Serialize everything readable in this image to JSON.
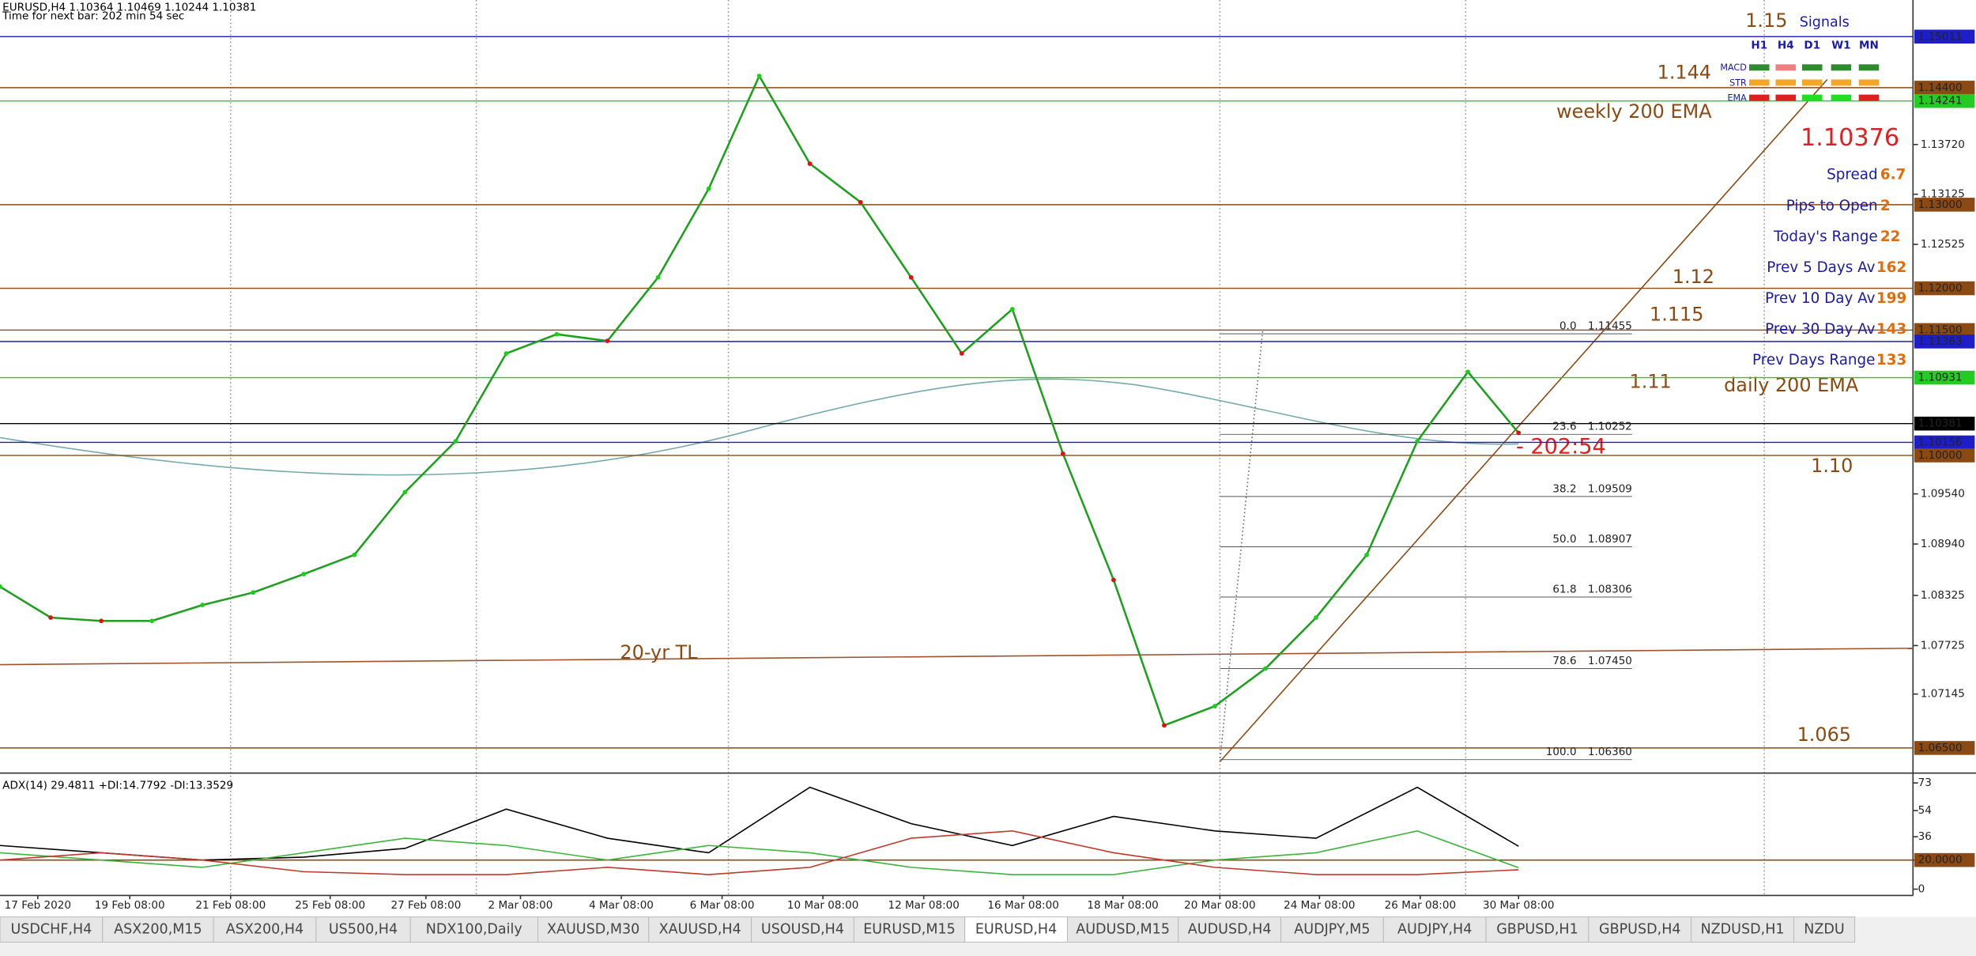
{
  "header": {
    "symbol_line": "EURUSD,H4  1.10364 1.10469 1.10244 1.10381",
    "timer": "Time for next bar: 202 min 54 sec"
  },
  "price_chart": {
    "ylim": [
      1.06214,
      1.15449
    ],
    "ticks": [
      {
        "value": 1.1372,
        "label": "1.13720"
      },
      {
        "value": 1.13125,
        "label": "1.13125"
      },
      {
        "value": 1.12525,
        "label": "1.12525"
      },
      {
        "value": 1.0954,
        "label": "1.09540"
      },
      {
        "value": 1.0894,
        "label": "1.08940"
      },
      {
        "value": 1.08325,
        "label": "1.08325"
      },
      {
        "value": 1.07725,
        "label": "1.07725"
      },
      {
        "value": 1.07145,
        "label": "1.07145"
      }
    ],
    "levels": [
      {
        "value": 1.15011,
        "label": "1.15011",
        "color": "#1e1ec8"
      },
      {
        "value": 1.144,
        "label": "1.14400",
        "color": "#8b4a13"
      },
      {
        "value": 1.14241,
        "label": "1.14241",
        "color": "#22cc22"
      },
      {
        "value": 1.13,
        "label": "1.13000",
        "color": "#8b4a13"
      },
      {
        "value": 1.12,
        "label": "1.12000",
        "color": "#8b4a13"
      },
      {
        "value": 1.115,
        "label": "1.11500",
        "color": "#8b4a13"
      },
      {
        "value": 1.11363,
        "label": "1.11363",
        "color": "#1e1ec8"
      },
      {
        "value": 1.10931,
        "label": "1.10931",
        "color": "#22cc22"
      },
      {
        "value": 1.10381,
        "label": "1.10381",
        "color": "#000000"
      },
      {
        "value": 1.10156,
        "label": "1.10156",
        "color": "#1e1ec8"
      },
      {
        "value": 1.1,
        "label": "1.10000",
        "color": "#8b4a13"
      },
      {
        "value": 1.065,
        "label": "1.06500",
        "color": "#8b4a13"
      }
    ],
    "fib": [
      {
        "level": "0.0",
        "value": 1.11455,
        "label": "1.11455"
      },
      {
        "level": "23.6",
        "value": 1.10252,
        "label": "1.10252"
      },
      {
        "level": "38.2",
        "value": 1.09509,
        "label": "1.09509"
      },
      {
        "level": "50.0",
        "value": 1.08907,
        "label": "1.08907"
      },
      {
        "level": "61.8",
        "value": 1.08306,
        "label": "1.08306"
      },
      {
        "level": "78.6",
        "value": 1.0745,
        "label": "1.07450"
      },
      {
        "level": "100.0",
        "value": 1.0636,
        "label": "1.06360"
      }
    ],
    "price": {
      "color": "#1ea01e",
      "values": [
        1.0843,
        1.0806,
        1.0802,
        1.0802,
        1.0821,
        1.0836,
        1.0858,
        1.0881,
        1.0956,
        1.1017,
        1.1122,
        1.1145,
        1.1137,
        1.1213,
        1.1319,
        1.1454,
        1.1349,
        1.1303,
        1.1213,
        1.1122,
        1.1175,
        1.1002,
        1.0851,
        1.0677,
        1.07,
        1.0745,
        1.0806,
        1.0881,
        1.1017,
        1.11,
        1.1027
      ]
    }
  },
  "annotations": {
    "a115": "1.15",
    "a1144": "1.144",
    "weekly": "weekly 200 EMA",
    "a112": "1.12",
    "a1115": "1.115",
    "a111": "1.11",
    "daily": "daily 200 EMA",
    "a110": "1.10",
    "a1065": "1.065",
    "tl": "20-yr TL",
    "countdown": "- 202:54"
  },
  "panel": {
    "title": "Signals",
    "timeframes": [
      "H1",
      "H4",
      "D1",
      "W1",
      "MN"
    ],
    "indicators": [
      "MACD",
      "STR",
      "EMA"
    ],
    "price": "1.10376",
    "rows": [
      {
        "label": "Spread",
        "value": "6.7"
      },
      {
        "label": "Pips to Open",
        "value": "2"
      },
      {
        "label": "Today's Range",
        "value": "22"
      },
      {
        "label": "Prev 5 Days Av",
        "value": "162"
      },
      {
        "label": "Prev 10 Day Av",
        "value": "199"
      },
      {
        "label": "Prev 30 Day Av",
        "value": "143"
      },
      {
        "label": "Prev Days Range",
        "value": "133"
      }
    ]
  },
  "adx": {
    "title": "ADX(14) 29.4811 +DI:14.7792 -DI:13.3529",
    "ylim": [
      0,
      78
    ],
    "ticks": [
      73,
      54,
      36,
      {
        "value": 20,
        "label": "20.0000"
      },
      0
    ],
    "series": [
      {
        "color": "#000000",
        "values": [
          30,
          25,
          20,
          22,
          28,
          55,
          35,
          25,
          70,
          45,
          30,
          50,
          40,
          35,
          70,
          29.4811
        ]
      },
      {
        "color": "#3cb43c",
        "values": [
          25,
          20,
          15,
          25,
          35,
          30,
          20,
          30,
          25,
          15,
          10,
          10,
          20,
          25,
          40,
          14.7792
        ]
      },
      {
        "color": "#c0392b",
        "values": [
          20,
          25,
          20,
          12,
          10,
          10,
          15,
          10,
          15,
          35,
          40,
          25,
          15,
          10,
          10,
          13.3529
        ]
      }
    ]
  },
  "time_axis": [
    "17 Feb 2020",
    "19 Feb 08:00",
    "21 Feb 08:00",
    "25 Feb 08:00",
    "27 Feb 08:00",
    "2 Mar 08:00",
    "4 Mar 08:00",
    "6 Mar 08:00",
    "10 Mar 08:00",
    "12 Mar 08:00",
    "16 Mar 08:00",
    "18 Mar 08:00",
    "20 Mar 08:00",
    "24 Mar 08:00",
    "26 Mar 08:00",
    "30 Mar 08:00"
  ],
  "tabs": {
    "active": 9,
    "items": [
      "USDCHF,H4",
      "ASX200,M15",
      "ASX200,H4",
      "US500,H4",
      "NDX100,Daily",
      "XAUUSD,M30",
      "XAUUSD,H4",
      "USOUSD,H4",
      "EURUSD,M15",
      "EURUSD,H4",
      "AUDUSD,M15",
      "AUDUSD,H4",
      "AUDJPY,M5",
      "AUDJPY,H4",
      "GBPUSD,H1",
      "GBPUSD,H4",
      "NZDUSD,H1",
      "NZDU"
    ]
  }
}
